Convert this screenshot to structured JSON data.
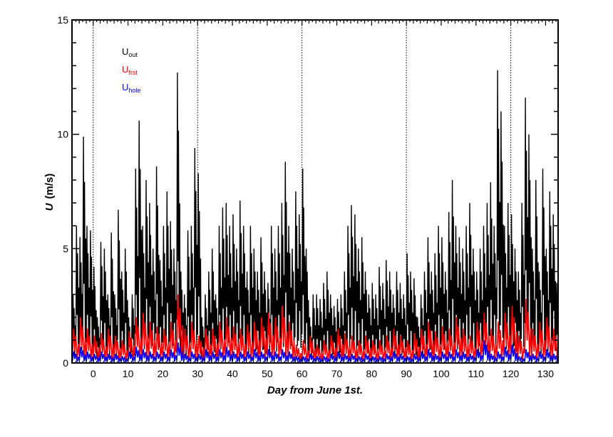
{
  "chart_data": {
    "type": "line",
    "xlabel": "Day  from  June  1st.",
    "ylabel_symbol": "U",
    "ylabel_unit": "(m/s)",
    "xlim": [
      -6.1,
      133.6
    ],
    "ylim": [
      0,
      15
    ],
    "xticks": [
      0,
      10,
      20,
      30,
      40,
      50,
      60,
      70,
      80,
      90,
      100,
      110,
      120,
      130
    ],
    "yticks": [
      0,
      5,
      10,
      15
    ],
    "vlines": [
      0,
      30,
      60,
      90,
      120
    ],
    "legend_position": "top-left",
    "series": [
      {
        "name": "U",
        "sub": "out",
        "color": "#000000",
        "x_start": -6,
        "x_step": 1,
        "values": [
          3,
          6,
          5.5,
          9.9,
          6,
          5.8,
          4.2,
          2,
          5.3,
          5,
          3,
          5.7,
          3,
          6.7,
          4,
          5,
          2,
          3,
          8.5,
          10.6,
          6,
          8,
          7,
          5,
          8.6,
          4.5,
          6,
          7.5,
          6.2,
          5,
          12.7,
          4,
          3,
          5.8,
          6,
          9.4,
          8.3,
          2,
          3,
          4,
          5,
          3,
          6,
          6.8,
          7,
          6,
          6.5,
          5,
          7.1,
          6,
          4,
          6,
          5,
          4,
          5.5,
          4,
          3.5,
          6,
          5,
          6,
          7,
          8.8,
          6,
          5,
          7.5,
          6.5,
          8.5,
          5,
          2,
          3,
          3,
          2.8,
          3.5,
          4,
          3,
          2.5,
          2.8,
          3,
          4,
          6,
          6.9,
          6.5,
          5,
          5.5,
          4,
          3,
          3.5,
          3,
          4.2,
          3.5,
          4.5,
          4,
          3,
          4,
          3.5,
          3,
          4.8,
          4,
          3.7,
          2,
          3,
          4,
          5.5,
          4,
          4.8,
          6,
          5.5,
          4,
          6.6,
          8,
          6,
          5.5,
          5,
          6,
          7,
          5,
          4,
          5,
          6,
          7,
          7.9,
          6,
          12.8,
          11,
          6,
          7,
          6.5,
          5,
          4,
          7,
          11.6,
          10,
          5,
          8,
          4,
          8.5,
          5,
          7.5,
          6.5,
          3.5
        ]
      },
      {
        "name": "U",
        "sub": "frst",
        "color": "#ff0000",
        "x_start": -6,
        "x_step": 2,
        "values": [
          1.5,
          2,
          1.5,
          1.2,
          1.3,
          1.5,
          1.2,
          1,
          1.4,
          2,
          2.2,
          1.8,
          1.6,
          1.5,
          1.8,
          3,
          1.5,
          1.8,
          1.2,
          1.5,
          1.5,
          1.8,
          2,
          1.6,
          1.5,
          1.7,
          1.8,
          2,
          2.2,
          2,
          2.5,
          1.8,
          0.8,
          1,
          1.2,
          0.8,
          1,
          1.2,
          1.5,
          1.3,
          1.2,
          1,
          1.2,
          1,
          1,
          1.2,
          1.5,
          1.2,
          1,
          1.3,
          1.5,
          1.8,
          1.4,
          1.6,
          1.5,
          2,
          1.5,
          1.2,
          1.8,
          2.2,
          1.5,
          1.8,
          2.2,
          2.5,
          1.2,
          2.8,
          1.5,
          1.8,
          2,
          1.5
        ]
      },
      {
        "name": "U",
        "sub": "hole",
        "color": "#0000ff",
        "x_start": -6,
        "x_step": 2,
        "values": [
          0.5,
          0.7,
          0.5,
          0.4,
          0.5,
          0.4,
          0.4,
          0.3,
          0.5,
          0.7,
          0.6,
          0.5,
          0.5,
          0.5,
          0.6,
          0.9,
          0.4,
          0.5,
          0.4,
          0.6,
          0.5,
          0.6,
          0.7,
          0.5,
          0.5,
          0.5,
          0.6,
          0.5,
          0.6,
          0.5,
          0.6,
          0.5,
          0.3,
          0.3,
          0.4,
          0.3,
          0.3,
          0.4,
          0.5,
          0.4,
          0.4,
          0.3,
          0.4,
          0.3,
          0.3,
          0.4,
          0.5,
          0.4,
          0.3,
          0.4,
          0.5,
          0.6,
          0.4,
          0.5,
          0.5,
          0.6,
          0.5,
          0.4,
          0.6,
          1.0,
          0.4,
          0.5,
          0.7,
          0.8,
          0.3,
          0.6,
          0.4,
          0.5,
          0.6,
          0.4
        ]
      }
    ]
  }
}
